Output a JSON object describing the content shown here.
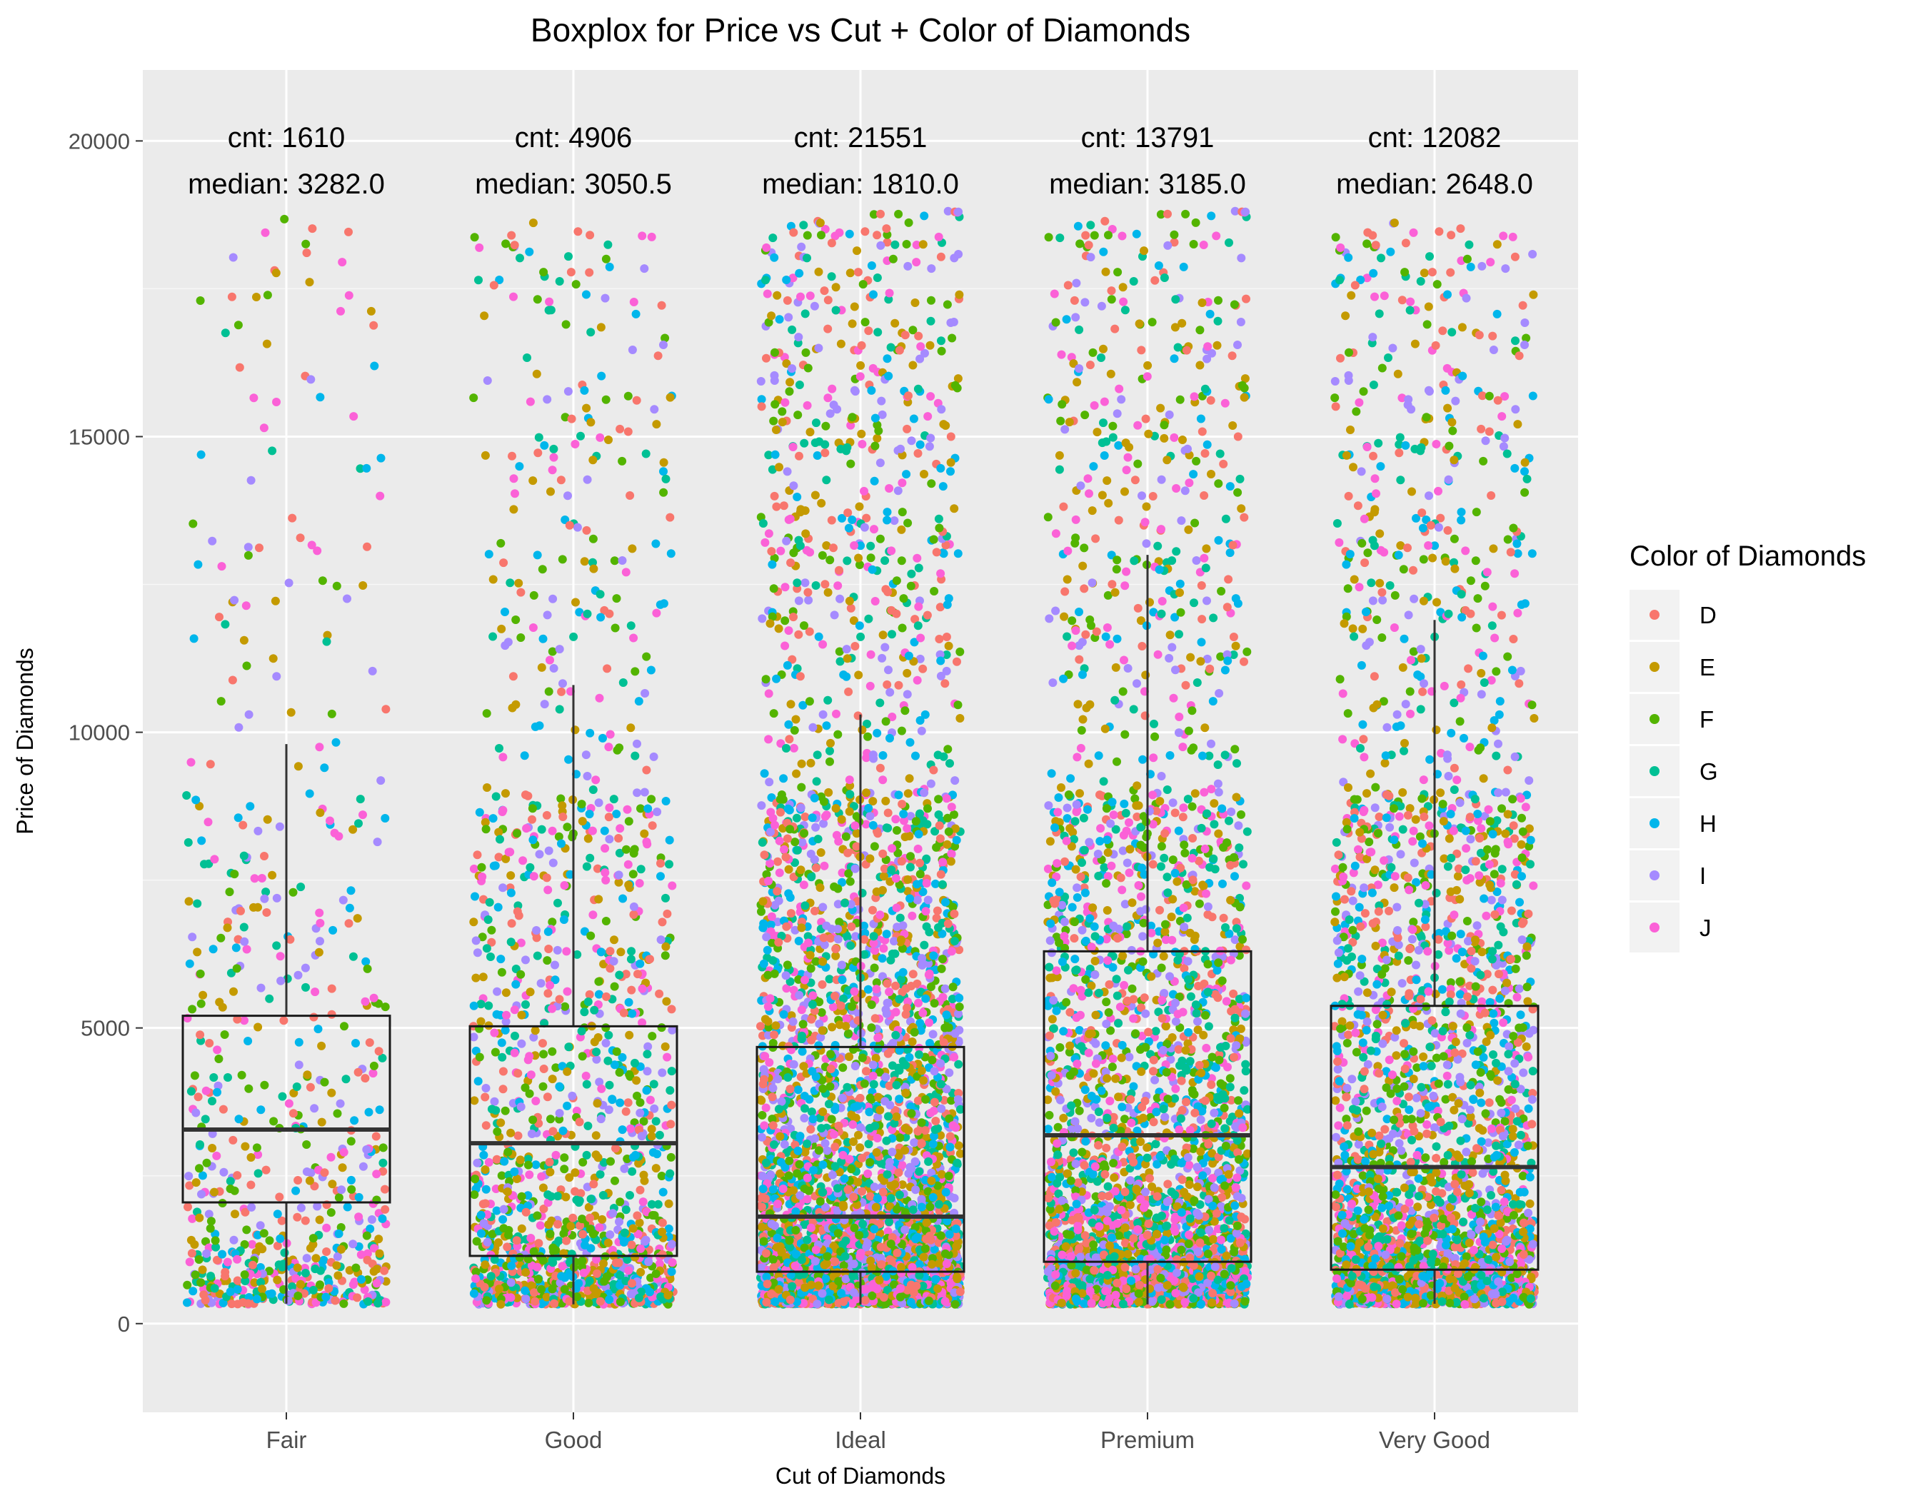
{
  "chart_data": {
    "type": "box",
    "title": "Boxplox for Price vs Cut + Color of Diamonds",
    "xlabel": "Cut of Diamonds",
    "ylabel": "Price of Diamonds",
    "ylim": [
      -1500,
      21200
    ],
    "yticks": [
      0,
      5000,
      10000,
      15000,
      20000
    ],
    "grid": true,
    "legend_position": "right",
    "legend": {
      "title": "Color of Diamonds",
      "entries": [
        {
          "label": "D",
          "color": "#F8766D"
        },
        {
          "label": "E",
          "color": "#C49A00"
        },
        {
          "label": "F",
          "color": "#53B400"
        },
        {
          "label": "G",
          "color": "#00C094"
        },
        {
          "label": "H",
          "color": "#00B6EB"
        },
        {
          "label": "I",
          "color": "#A58AFF"
        },
        {
          "label": "J",
          "color": "#FB61D7"
        }
      ]
    },
    "categories": [
      "Fair",
      "Good",
      "Ideal",
      "Premium",
      "Very Good"
    ],
    "boxes": [
      {
        "category": "Fair",
        "count": 1610,
        "median": 3282.0,
        "q1": 2050,
        "q3": 5206,
        "whisker_low": 337,
        "whisker_high": 9800,
        "count_label": "cnt: 1610",
        "median_label": "median: 3282.0"
      },
      {
        "category": "Good",
        "count": 4906,
        "median": 3050.5,
        "q1": 1145,
        "q3": 5028,
        "whisker_low": 327,
        "whisker_high": 10800,
        "count_label": "cnt: 4906",
        "median_label": "median: 3050.5"
      },
      {
        "category": "Ideal",
        "count": 21551,
        "median": 1810.0,
        "q1": 878,
        "q3": 4678,
        "whisker_low": 326,
        "whisker_high": 10300,
        "count_label": "cnt: 21551",
        "median_label": "median: 1810.0"
      },
      {
        "category": "Premium",
        "count": 13791,
        "median": 3185.0,
        "q1": 1046,
        "q3": 6296,
        "whisker_low": 326,
        "whisker_high": 13000,
        "count_label": "cnt: 13791",
        "median_label": "median: 3185.0"
      },
      {
        "category": "Very Good",
        "count": 12082,
        "median": 2648.0,
        "q1": 912,
        "q3": 5373,
        "whisker_low": 336,
        "whisker_high": 11900,
        "count_label": "cnt: 12082",
        "median_label": "median: 2648.0"
      }
    ],
    "jitter": {
      "price_min": 326,
      "price_max": 18823,
      "note_visible": false
    }
  }
}
